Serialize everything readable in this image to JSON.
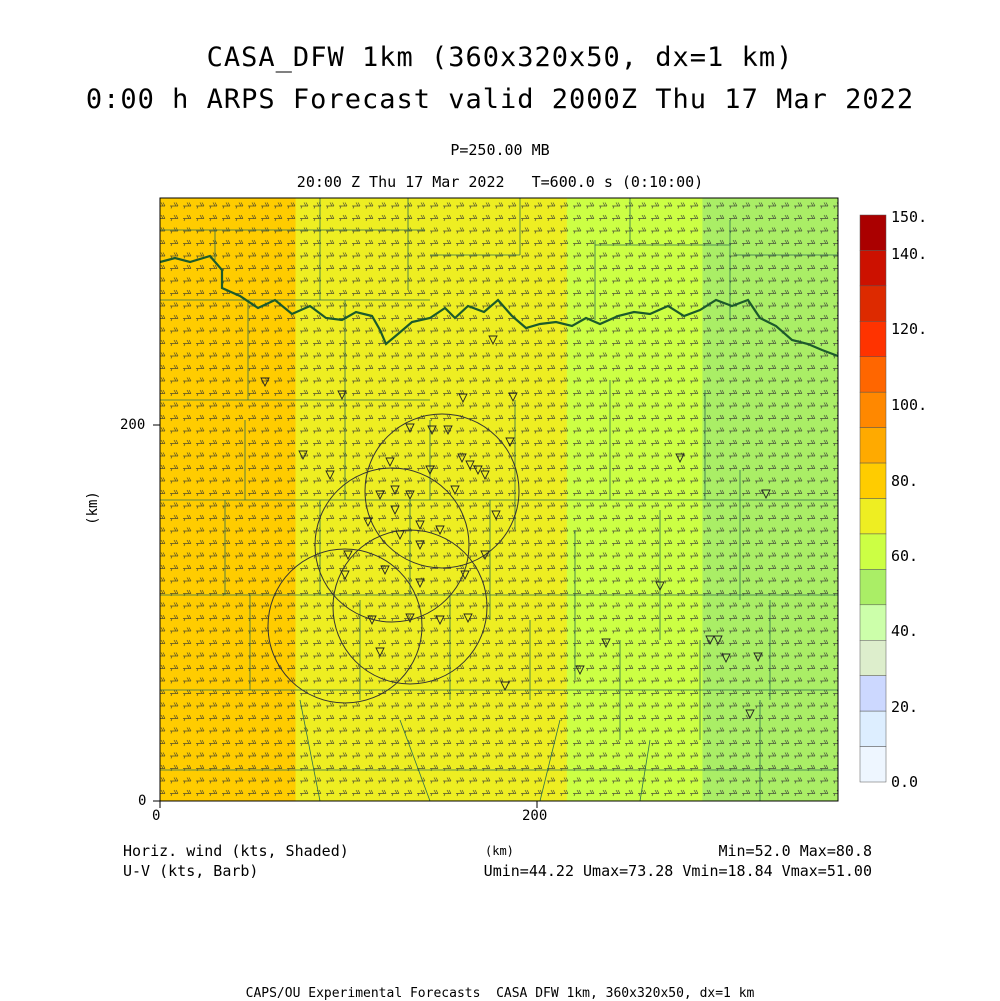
{
  "header": {
    "title_line1": "CASA_DFW 1km (360x320x50, dx=1 km)",
    "title_line2": "0:00 h ARPS Forecast valid 2000Z Thu 17 Mar 2022",
    "pressure": "P=250.00 MB",
    "time_line": "20:00 Z Thu 17 Mar 2022   T=600.0 s (0:10:00)"
  },
  "axes": {
    "ylabel": "(km)",
    "xlabel": "(km)",
    "x_ticks": [
      "0",
      "200"
    ],
    "y_ticks": [
      "0",
      "200"
    ],
    "x_range_km": [
      0,
      360
    ],
    "y_range_km": [
      0,
      320
    ]
  },
  "colorbar": {
    "labels": [
      "150.",
      "140.",
      "120.",
      "100.",
      "80.",
      "60.",
      "40.",
      "20.",
      "0.0"
    ],
    "colors": [
      "#aa0000",
      "#cc1100",
      "#dd2a00",
      "#ff3300",
      "#ff6600",
      "#ff8800",
      "#ffaa00",
      "#ffcc00",
      "#eeee22",
      "#ccff44",
      "#aaee66",
      "#ccffaa",
      "#ddeecc",
      "#ccd8ff",
      "#ddeeff",
      "#eef6ff"
    ]
  },
  "footer_left": {
    "line1": "Horiz. wind (kts, Shaded)",
    "line2": "U-V (kts, Barb)"
  },
  "footer_right": {
    "line1": "Min=52.0 Max=80.8",
    "line2": "Umin=44.22 Umax=73.28 Vmin=18.84 Vmax=51.00"
  },
  "bottom_credit": "CAPS/OU Experimental Forecasts  CASA DFW 1km, 360x320x50, dx=1 km",
  "field": {
    "min": 52.0,
    "max": 80.8,
    "band_values_kts": [
      78,
      76,
      74,
      72,
      70,
      66,
      62,
      58,
      55,
      53
    ]
  }
}
